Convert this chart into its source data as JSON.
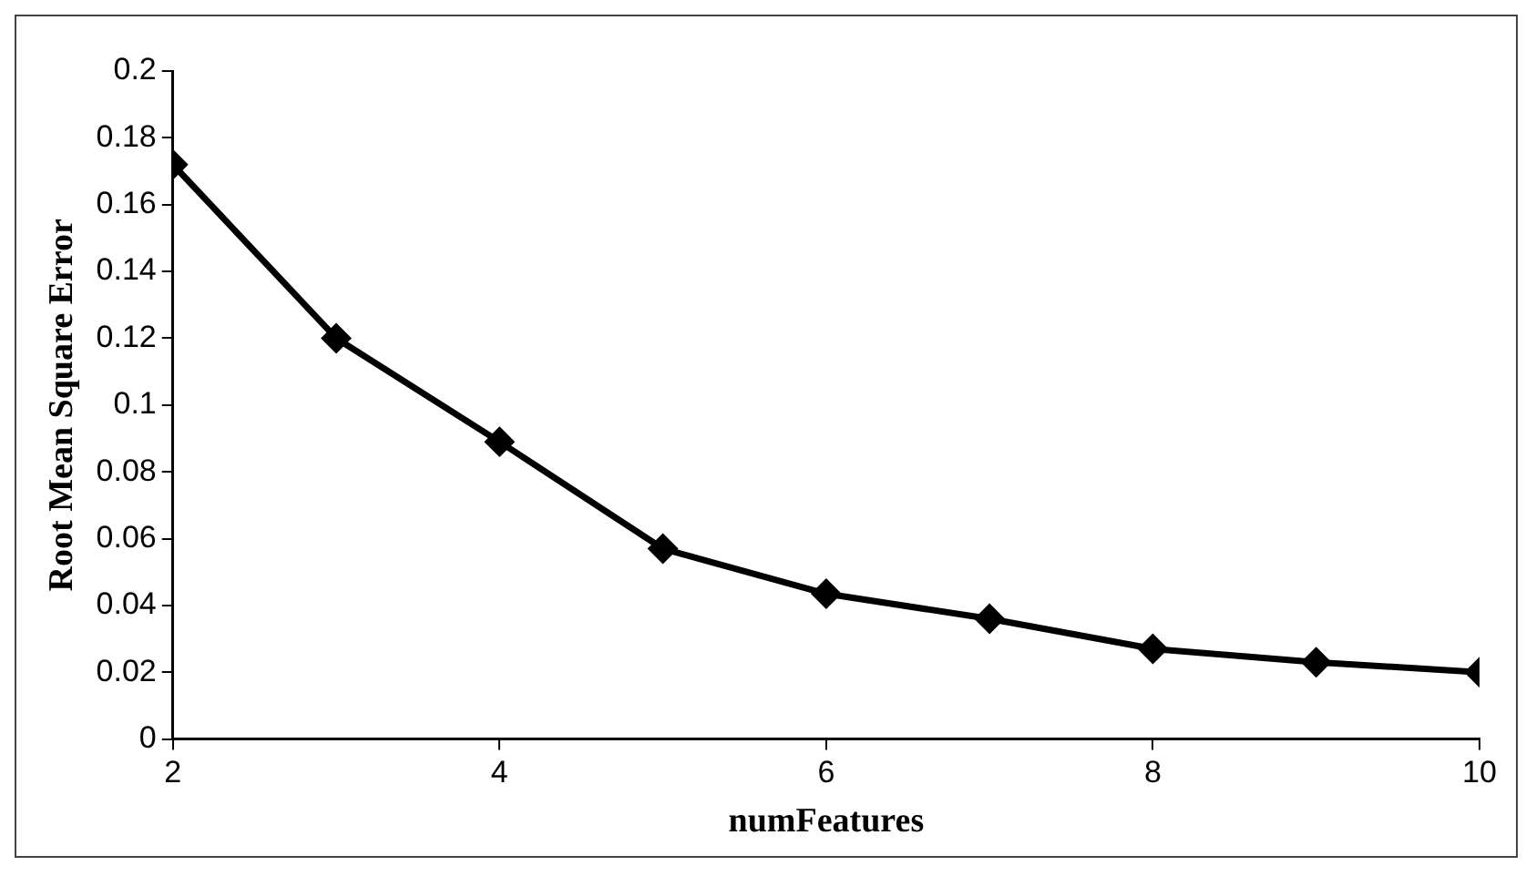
{
  "chart_data": {
    "type": "line",
    "xlabel": "numFeatures",
    "ylabel": "Root Mean Square Error",
    "x": [
      2,
      3,
      4,
      5,
      6,
      7,
      8,
      9,
      10
    ],
    "series": [
      {
        "color": "#000000",
        "values": [
          0.172,
          0.12,
          0.089,
          0.057,
          0.0435,
          0.036,
          0.027,
          0.023,
          0.02
        ]
      }
    ],
    "xlim": [
      2,
      10
    ],
    "xticks": [
      2,
      4,
      6,
      8,
      10
    ],
    "ylim": [
      0,
      0.2
    ],
    "yticks": [
      0,
      0.02,
      0.04,
      0.06,
      0.08,
      0.1,
      0.12,
      0.14,
      0.16,
      0.18,
      0.2
    ],
    "grid": false,
    "legend": false,
    "marker": "diamond",
    "line_style": "solid"
  }
}
